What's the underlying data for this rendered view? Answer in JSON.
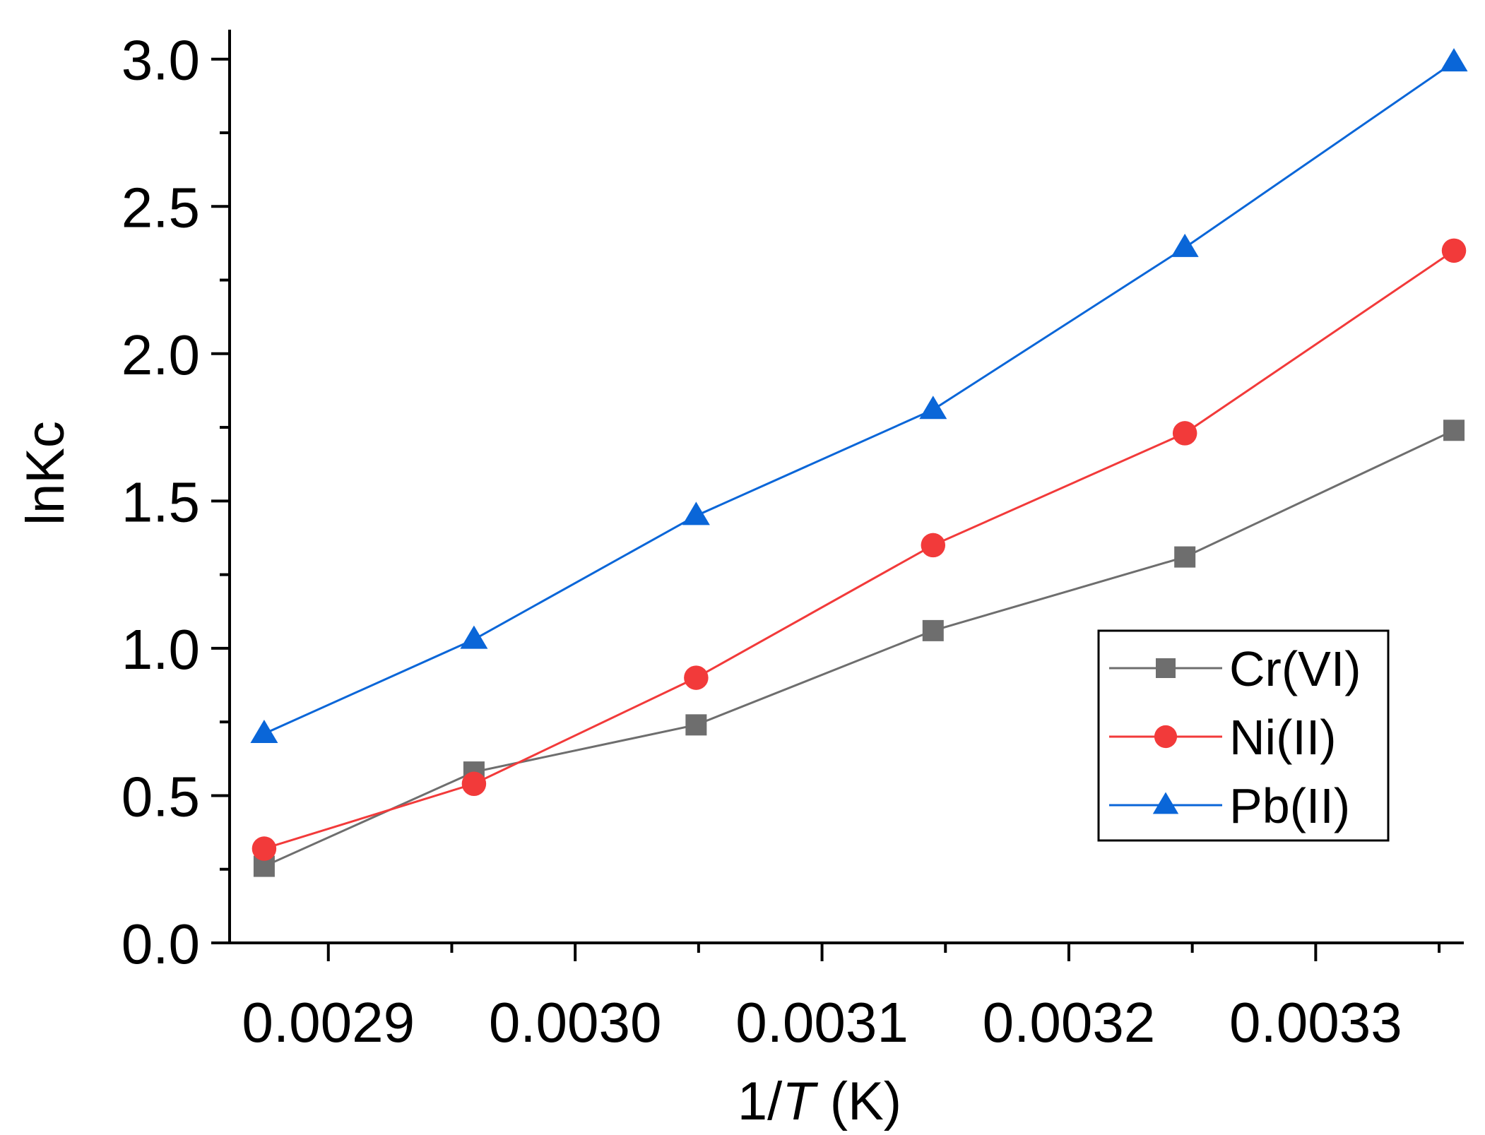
{
  "chart_data": {
    "type": "line",
    "title": "",
    "xlabel_prefix": "1/",
    "xlabel_var": "T",
    "xlabel_suffix": " (K)",
    "ylabel": "lnKc",
    "xlim": [
      0.00286,
      0.00336
    ],
    "ylim": [
      0.0,
      3.1
    ],
    "x_ticks": [
      0.0029,
      0.003,
      0.0031,
      0.0032,
      0.0033
    ],
    "x_tick_labels": [
      "0.0029",
      "0.0030",
      "0.0031",
      "0.0032",
      "0.0033"
    ],
    "y_ticks": [
      0.0,
      0.5,
      1.0,
      1.5,
      2.0,
      2.5,
      3.0
    ],
    "y_tick_labels": [
      "0.0",
      "0.5",
      "1.0",
      "1.5",
      "2.0",
      "2.5",
      "3.0"
    ],
    "x": [
      0.002874,
      0.002959,
      0.003049,
      0.003145,
      0.003247,
      0.003356
    ],
    "series": [
      {
        "name": "Cr(VI)",
        "color": "#6e6e6e",
        "marker": "square",
        "values": [
          0.26,
          0.58,
          0.74,
          1.06,
          1.31,
          1.74
        ]
      },
      {
        "name": "Ni(II)",
        "color": "#f23a3a",
        "marker": "circle",
        "values": [
          0.32,
          0.54,
          0.9,
          1.35,
          1.73,
          2.35
        ]
      },
      {
        "name": "Pb(II)",
        "color": "#0a66d8",
        "marker": "triangle",
        "values": [
          0.71,
          1.03,
          1.45,
          1.81,
          2.36,
          2.99
        ]
      }
    ],
    "grid": false,
    "legend_position": "lower-right"
  }
}
